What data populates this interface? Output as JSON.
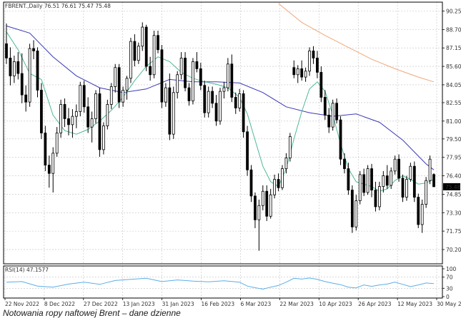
{
  "header_text": "FBRENT.,Daily  76.51 76.61 75.47 75.48",
  "rsi_label": "RSI(14) 47.1577",
  "caption": "Notowania ropy naftowej Brent – dane dzienne",
  "last_price_label": "75.48",
  "colors": {
    "background": "#ffffff",
    "grid": "#c0c0c0",
    "candle": "#000000",
    "ma_fast": "#4fb89a",
    "ma_mid": "#3a3ab8",
    "ma_slow": "#f0a878",
    "rsi_line": "#5aaee8",
    "price_tag_bg": "#000000",
    "price_tag_text": "#ffffff"
  },
  "chart_data": {
    "type": "candlestick",
    "y_ticks": [
      "90.25",
      "88.70",
      "87.15",
      "85.60",
      "84.05",
      "82.55",
      "81.00",
      "79.50",
      "77.95",
      "76.40",
      "74.85",
      "73.30",
      "71.75",
      "70.20"
    ],
    "ylim": [
      69.0,
      91.0
    ],
    "x_ticks": [
      "22 Nov 2022",
      "8 Dec 2022",
      "27 Dec 2022",
      "13 Jan 2023",
      "31 Jan 2023",
      "16 Feb 2023",
      "6 Mar 2023",
      "22 Mar 2023",
      "10 Apr 2023",
      "26 Apr 2023",
      "12 May 2023",
      "30 May 2023"
    ],
    "rsi_ticks": [
      "100",
      "70",
      "30",
      "0"
    ],
    "rsi_value": 47.1577,
    "candles": [
      [
        87.5,
        89.2,
        85.8,
        86.3
      ],
      [
        86.3,
        87.2,
        84.0,
        84.8
      ],
      [
        84.8,
        86.5,
        84.2,
        86.0
      ],
      [
        86.0,
        86.8,
        84.5,
        85.0
      ],
      [
        85.0,
        86.7,
        82.5,
        83.2
      ],
      [
        83.2,
        84.0,
        81.8,
        82.6
      ],
      [
        82.6,
        87.5,
        82.2,
        87.1
      ],
      [
        87.1,
        87.8,
        86.2,
        86.9
      ],
      [
        86.9,
        87.2,
        83.0,
        83.6
      ],
      [
        83.6,
        84.2,
        79.5,
        80.0
      ],
      [
        80.0,
        80.6,
        76.8,
        77.3
      ],
      [
        77.3,
        78.1,
        75.4,
        76.6
      ],
      [
        76.6,
        78.8,
        75.0,
        78.3
      ],
      [
        78.3,
        80.5,
        78.0,
        80.0
      ],
      [
        80.0,
        82.8,
        79.6,
        82.4
      ],
      [
        82.4,
        82.9,
        80.5,
        81.2
      ],
      [
        81.2,
        82.1,
        79.8,
        80.7
      ],
      [
        80.7,
        82.0,
        79.6,
        81.4
      ],
      [
        81.4,
        82.4,
        80.4,
        81.8
      ],
      [
        81.8,
        84.3,
        81.4,
        84.0
      ],
      [
        84.0,
        84.4,
        81.7,
        82.2
      ],
      [
        82.2,
        83.0,
        80.0,
        80.5
      ],
      [
        80.5,
        81.8,
        79.2,
        81.2
      ],
      [
        81.2,
        83.6,
        80.8,
        83.3
      ],
      [
        83.3,
        83.8,
        78.0,
        78.6
      ],
      [
        78.6,
        80.9,
        78.2,
        80.6
      ],
      [
        80.6,
        82.8,
        80.3,
        82.4
      ],
      [
        82.4,
        84.2,
        82.0,
        83.9
      ],
      [
        83.9,
        85.8,
        83.4,
        85.5
      ],
      [
        85.5,
        85.8,
        82.1,
        82.6
      ],
      [
        82.6,
        83.9,
        82.2,
        83.6
      ],
      [
        83.6,
        84.8,
        82.8,
        84.6
      ],
      [
        84.6,
        88.0,
        84.2,
        87.7
      ],
      [
        87.7,
        88.3,
        85.6,
        86.1
      ],
      [
        86.1,
        87.6,
        85.8,
        87.3
      ],
      [
        87.3,
        89.3,
        86.9,
        88.9
      ],
      [
        88.9,
        89.1,
        85.2,
        85.6
      ],
      [
        85.6,
        86.4,
        84.4,
        84.9
      ],
      [
        84.9,
        88.6,
        84.6,
        88.2
      ],
      [
        88.2,
        88.6,
        86.7,
        87.0
      ],
      [
        87.0,
        87.4,
        82.1,
        82.6
      ],
      [
        82.6,
        84.2,
        82.2,
        83.8
      ],
      [
        83.8,
        85.0,
        79.4,
        79.9
      ],
      [
        79.9,
        83.9,
        79.5,
        83.4
      ],
      [
        83.4,
        85.2,
        82.9,
        84.9
      ],
      [
        84.9,
        86.8,
        84.5,
        86.3
      ],
      [
        86.3,
        86.8,
        83.5,
        83.8
      ],
      [
        83.8,
        84.2,
        82.3,
        82.7
      ],
      [
        82.7,
        86.3,
        82.4,
        86.0
      ],
      [
        86.0,
        86.8,
        85.1,
        85.4
      ],
      [
        85.4,
        85.9,
        83.6,
        84.0
      ],
      [
        84.0,
        84.4,
        81.3,
        81.7
      ],
      [
        81.7,
        83.9,
        81.3,
        83.5
      ],
      [
        83.5,
        83.9,
        82.1,
        82.5
      ],
      [
        82.5,
        83.2,
        80.6,
        81.0
      ],
      [
        81.0,
        83.8,
        80.7,
        83.5
      ],
      [
        83.5,
        84.3,
        82.9,
        83.8
      ],
      [
        83.8,
        86.3,
        83.5,
        85.8
      ],
      [
        85.8,
        86.6,
        82.6,
        83.0
      ],
      [
        83.0,
        83.4,
        81.6,
        82.1
      ],
      [
        82.1,
        83.7,
        81.8,
        83.3
      ],
      [
        83.3,
        83.6,
        79.6,
        80.1
      ],
      [
        80.1,
        80.6,
        76.4,
        76.9
      ],
      [
        76.9,
        77.3,
        74.2,
        74.7
      ],
      [
        74.7,
        75.0,
        72.0,
        72.7
      ],
      [
        72.7,
        74.4,
        70.1,
        73.9
      ],
      [
        73.9,
        75.6,
        73.5,
        75.1
      ],
      [
        75.1,
        75.6,
        72.6,
        73.0
      ],
      [
        73.0,
        75.3,
        72.8,
        74.8
      ],
      [
        74.8,
        76.5,
        74.5,
        76.1
      ],
      [
        76.1,
        76.6,
        75.1,
        75.4
      ],
      [
        75.4,
        77.3,
        75.2,
        77.0
      ],
      [
        77.0,
        78.3,
        76.6,
        77.9
      ],
      [
        77.9,
        80.0,
        77.6,
        79.7
      ],
      [
        85.5,
        86.1,
        84.6,
        84.9
      ],
      [
        84.9,
        85.7,
        84.2,
        85.4
      ],
      [
        85.4,
        86.1,
        84.4,
        84.7
      ],
      [
        84.7,
        85.5,
        84.3,
        85.2
      ],
      [
        85.2,
        87.2,
        84.8,
        86.9
      ],
      [
        86.9,
        87.3,
        85.8,
        86.3
      ],
      [
        86.3,
        86.9,
        84.6,
        85.1
      ],
      [
        85.1,
        85.6,
        82.6,
        83.0
      ],
      [
        83.0,
        83.6,
        81.1,
        81.5
      ],
      [
        81.5,
        82.1,
        80.0,
        80.5
      ],
      [
        80.5,
        82.8,
        80.2,
        82.5
      ],
      [
        82.5,
        82.9,
        80.8,
        81.1
      ],
      [
        81.1,
        81.4,
        77.3,
        77.8
      ],
      [
        77.8,
        78.3,
        76.6,
        77.0
      ],
      [
        77.0,
        77.5,
        74.8,
        75.2
      ],
      [
        75.2,
        75.6,
        71.6,
        72.1
      ],
      [
        72.1,
        74.8,
        71.8,
        74.3
      ],
      [
        74.3,
        76.8,
        74.0,
        76.5
      ],
      [
        76.5,
        77.0,
        74.7,
        75.0
      ],
      [
        75.0,
        77.3,
        74.8,
        77.0
      ],
      [
        77.0,
        77.4,
        74.6,
        75.2
      ],
      [
        75.2,
        75.9,
        73.4,
        73.8
      ],
      [
        73.8,
        75.9,
        73.5,
        75.5
      ],
      [
        75.5,
        76.8,
        75.0,
        76.4
      ],
      [
        76.4,
        77.3,
        75.3,
        75.6
      ],
      [
        75.6,
        77.1,
        75.3,
        76.8
      ],
      [
        76.8,
        78.1,
        76.5,
        77.8
      ],
      [
        77.8,
        78.2,
        75.9,
        76.2
      ],
      [
        76.2,
        76.5,
        74.2,
        74.6
      ],
      [
        74.6,
        76.4,
        74.3,
        76.1
      ],
      [
        76.1,
        77.5,
        75.9,
        77.2
      ],
      [
        77.2,
        77.6,
        74.2,
        74.6
      ],
      [
        74.6,
        74.9,
        72.0,
        72.3
      ],
      [
        72.3,
        74.4,
        71.6,
        74.0
      ],
      [
        74.0,
        76.3,
        73.7,
        76.0
      ],
      [
        76.0,
        78.1,
        75.7,
        77.8
      ],
      [
        76.51,
        76.61,
        75.47,
        75.48
      ]
    ],
    "ma_fast": [
      [
        0,
        88.5
      ],
      [
        3,
        87.0
      ],
      [
        6,
        85.0
      ],
      [
        9,
        84.5
      ],
      [
        12,
        81.5
      ],
      [
        15,
        80.2
      ],
      [
        18,
        79.9
      ],
      [
        21,
        80.3
      ],
      [
        24,
        81.0
      ],
      [
        27,
        81.9
      ],
      [
        30,
        83.0
      ],
      [
        33,
        84.4
      ],
      [
        36,
        85.6
      ],
      [
        39,
        86.4
      ],
      [
        42,
        86.0
      ],
      [
        45,
        85.1
      ],
      [
        48,
        84.6
      ],
      [
        51,
        84.3
      ],
      [
        54,
        84.1
      ],
      [
        57,
        83.8
      ],
      [
        60,
        83.0
      ],
      [
        62,
        81.6
      ],
      [
        64,
        79.4
      ],
      [
        66,
        77.2
      ],
      [
        68,
        75.9
      ],
      [
        70,
        75.5
      ],
      [
        72,
        77.0
      ],
      [
        74,
        79.5
      ],
      [
        76,
        81.8
      ],
      [
        78,
        83.7
      ],
      [
        80,
        84.3
      ],
      [
        82,
        83.5
      ],
      [
        84,
        81.5
      ],
      [
        86,
        79.1
      ],
      [
        88,
        77.0
      ],
      [
        90,
        75.9
      ],
      [
        92,
        75.7
      ],
      [
        94,
        75.5
      ],
      [
        96,
        75.1
      ],
      [
        98,
        75.3
      ],
      [
        100,
        76.0
      ],
      [
        102,
        76.4
      ],
      [
        104,
        76.1
      ],
      [
        106,
        75.7
      ],
      [
        108,
        75.8
      ],
      [
        110,
        76.1
      ]
    ],
    "ma_mid": [
      [
        0,
        89.0
      ],
      [
        6,
        88.4
      ],
      [
        12,
        86.4
      ],
      [
        18,
        84.8
      ],
      [
        24,
        83.8
      ],
      [
        30,
        83.4
      ],
      [
        36,
        83.7
      ],
      [
        42,
        84.5
      ],
      [
        48,
        84.3
      ],
      [
        54,
        84.3
      ],
      [
        60,
        84.2
      ],
      [
        66,
        83.4
      ],
      [
        72,
        82.2
      ],
      [
        78,
        81.7
      ],
      [
        84,
        81.4
      ],
      [
        90,
        81.6
      ],
      [
        96,
        80.9
      ],
      [
        102,
        79.4
      ],
      [
        108,
        77.4
      ],
      [
        110,
        76.9
      ]
    ],
    "ma_slow": [
      [
        70,
        90.9
      ],
      [
        76,
        89.3
      ],
      [
        82,
        88.2
      ],
      [
        88,
        87.2
      ],
      [
        94,
        86.2
      ],
      [
        100,
        85.4
      ],
      [
        106,
        84.7
      ],
      [
        110,
        84.3
      ]
    ],
    "rsi": [
      [
        0,
        52
      ],
      [
        4,
        54
      ],
      [
        8,
        38
      ],
      [
        12,
        34
      ],
      [
        16,
        45
      ],
      [
        20,
        52
      ],
      [
        24,
        44
      ],
      [
        28,
        58
      ],
      [
        32,
        62
      ],
      [
        36,
        66
      ],
      [
        40,
        54
      ],
      [
        44,
        60
      ],
      [
        48,
        56
      ],
      [
        52,
        53
      ],
      [
        56,
        57
      ],
      [
        60,
        52
      ],
      [
        62,
        38
      ],
      [
        64,
        32
      ],
      [
        66,
        27
      ],
      [
        68,
        34
      ],
      [
        70,
        40
      ],
      [
        72,
        52
      ],
      [
        74,
        66
      ],
      [
        76,
        63
      ],
      [
        78,
        67
      ],
      [
        80,
        62
      ],
      [
        82,
        54
      ],
      [
        84,
        48
      ],
      [
        86,
        43
      ],
      [
        88,
        34
      ],
      [
        90,
        31
      ],
      [
        92,
        42
      ],
      [
        94,
        37
      ],
      [
        96,
        42
      ],
      [
        98,
        45
      ],
      [
        100,
        52
      ],
      [
        102,
        44
      ],
      [
        104,
        36
      ],
      [
        106,
        42
      ],
      [
        108,
        49
      ],
      [
        110,
        47
      ]
    ]
  }
}
